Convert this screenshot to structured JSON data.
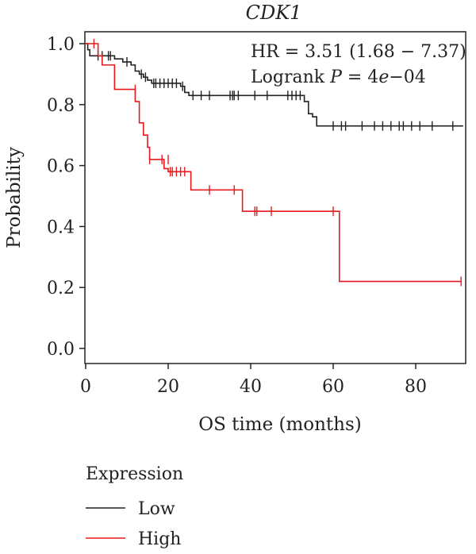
{
  "chart_data": {
    "type": "line",
    "subtype": "kaplan-meier",
    "title": "CDK1",
    "annotation": {
      "hr_text": "HR = 3.51 (1.68 − 7.37)",
      "logrank_prefix": "Logrank ",
      "logrank_p": "P",
      "logrank_eq": " = 4",
      "logrank_e": "e",
      "logrank_exp": "−04"
    },
    "xlabel": "OS time (months)",
    "ylabel": "Probability",
    "xlim": [
      0,
      95
    ],
    "ylim": [
      0,
      1.05
    ],
    "xticks": [
      0,
      20,
      40,
      60,
      80
    ],
    "yticks": [
      0.0,
      0.2,
      0.4,
      0.6,
      0.8,
      1.0
    ],
    "ytick_labels": [
      "0.0",
      "0.2",
      "0.4",
      "0.6",
      "0.8",
      "1.0"
    ],
    "grid": false,
    "legend": {
      "title": "Expression",
      "placement": "bottom-left"
    },
    "series": [
      {
        "name": "Low",
        "color": "#222222",
        "steps": [
          [
            0,
            1.0
          ],
          [
            0.5,
            0.98
          ],
          [
            1,
            0.96
          ],
          [
            5,
            0.96
          ],
          [
            7,
            0.95
          ],
          [
            9,
            0.94
          ],
          [
            11,
            0.93
          ],
          [
            12,
            0.91
          ],
          [
            13,
            0.9
          ],
          [
            14,
            0.89
          ],
          [
            15,
            0.88
          ],
          [
            16,
            0.87
          ],
          [
            23,
            0.86
          ],
          [
            24,
            0.84
          ],
          [
            25,
            0.83
          ],
          [
            53,
            0.81
          ],
          [
            54,
            0.77
          ],
          [
            55,
            0.76
          ],
          [
            56,
            0.73
          ],
          [
            91.5,
            0.73
          ]
        ],
        "censors": [
          [
            3,
            0.96
          ],
          [
            4,
            0.96
          ],
          [
            5.5,
            0.96
          ],
          [
            6,
            0.96
          ],
          [
            10,
            0.94
          ],
          [
            13.5,
            0.9
          ],
          [
            14.5,
            0.89
          ],
          [
            16.5,
            0.87
          ],
          [
            17,
            0.87
          ],
          [
            18,
            0.87
          ],
          [
            19,
            0.87
          ],
          [
            20,
            0.87
          ],
          [
            21,
            0.87
          ],
          [
            22,
            0.87
          ],
          [
            23.5,
            0.86
          ],
          [
            26,
            0.83
          ],
          [
            28,
            0.83
          ],
          [
            30,
            0.83
          ],
          [
            35,
            0.83
          ],
          [
            35.6,
            0.83
          ],
          [
            36,
            0.83
          ],
          [
            37,
            0.83
          ],
          [
            41,
            0.83
          ],
          [
            44,
            0.83
          ],
          [
            49,
            0.83
          ],
          [
            50,
            0.83
          ],
          [
            51,
            0.83
          ],
          [
            52,
            0.83
          ],
          [
            60,
            0.73
          ],
          [
            62,
            0.73
          ],
          [
            63,
            0.73
          ],
          [
            67,
            0.73
          ],
          [
            70,
            0.73
          ],
          [
            72,
            0.73
          ],
          [
            74,
            0.73
          ],
          [
            76,
            0.73
          ],
          [
            77,
            0.73
          ],
          [
            79,
            0.73
          ],
          [
            81,
            0.73
          ],
          [
            84,
            0.73
          ],
          [
            89,
            0.73
          ]
        ]
      },
      {
        "name": "High",
        "color": "#e8191c",
        "steps": [
          [
            0,
            1.0
          ],
          [
            3,
            0.96
          ],
          [
            4,
            0.93
          ],
          [
            7,
            0.85
          ],
          [
            12,
            0.81
          ],
          [
            13,
            0.74
          ],
          [
            14,
            0.7
          ],
          [
            15,
            0.66
          ],
          [
            15.5,
            0.62
          ],
          [
            19,
            0.59
          ],
          [
            20,
            0.58
          ],
          [
            25.5,
            0.52
          ],
          [
            38,
            0.45
          ],
          [
            61.5,
            0.22
          ],
          [
            91,
            0.22
          ]
        ],
        "censors": [
          [
            2,
            1.0
          ],
          [
            12,
            0.85
          ],
          [
            15.5,
            0.62
          ],
          [
            18.5,
            0.62
          ],
          [
            20,
            0.62
          ],
          [
            20.5,
            0.58
          ],
          [
            21,
            0.58
          ],
          [
            22,
            0.58
          ],
          [
            23,
            0.58
          ],
          [
            24,
            0.58
          ],
          [
            30,
            0.52
          ],
          [
            36,
            0.52
          ],
          [
            41,
            0.45
          ],
          [
            41.5,
            0.45
          ],
          [
            45,
            0.45
          ],
          [
            60,
            0.45
          ],
          [
            91,
            0.22
          ]
        ]
      }
    ]
  }
}
